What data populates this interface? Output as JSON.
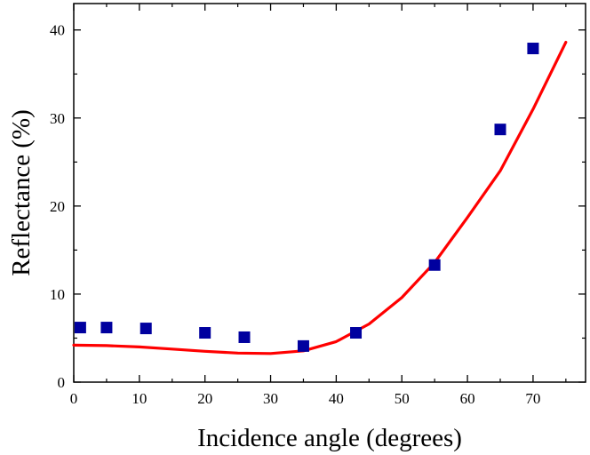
{
  "chart_data": {
    "type": "scatter",
    "title": "",
    "xlabel": "Incidence angle (degrees)",
    "ylabel": "Reflectance (%)",
    "xlim": [
      0,
      78
    ],
    "ylim": [
      0,
      43
    ],
    "x_ticks": [
      0,
      10,
      20,
      30,
      40,
      50,
      60,
      70
    ],
    "y_ticks": [
      0,
      10,
      20,
      30,
      40
    ],
    "grid": false,
    "series": [
      {
        "kind": "scatter",
        "marker": "square",
        "color": "#00009f",
        "points": [
          {
            "x": 1,
            "y": 6.2
          },
          {
            "x": 5,
            "y": 6.2
          },
          {
            "x": 11,
            "y": 6.1
          },
          {
            "x": 20,
            "y": 5.6
          },
          {
            "x": 26,
            "y": 5.1
          },
          {
            "x": 35,
            "y": 4.1
          },
          {
            "x": 43,
            "y": 5.6
          },
          {
            "x": 55,
            "y": 13.3
          },
          {
            "x": 65,
            "y": 28.7
          },
          {
            "x": 70,
            "y": 37.9
          }
        ]
      },
      {
        "kind": "line",
        "color": "#ff0000",
        "points": [
          {
            "x": 0,
            "y": 4.2
          },
          {
            "x": 5,
            "y": 4.15
          },
          {
            "x": 10,
            "y": 4.0
          },
          {
            "x": 15,
            "y": 3.75
          },
          {
            "x": 20,
            "y": 3.5
          },
          {
            "x": 25,
            "y": 3.3
          },
          {
            "x": 30,
            "y": 3.25
          },
          {
            "x": 35,
            "y": 3.55
          },
          {
            "x": 40,
            "y": 4.6
          },
          {
            "x": 45,
            "y": 6.6
          },
          {
            "x": 50,
            "y": 9.6
          },
          {
            "x": 55,
            "y": 13.6
          },
          {
            "x": 60,
            "y": 18.7
          },
          {
            "x": 65,
            "y": 24.0
          },
          {
            "x": 70,
            "y": 31.0
          },
          {
            "x": 75,
            "y": 38.6
          }
        ]
      }
    ]
  }
}
